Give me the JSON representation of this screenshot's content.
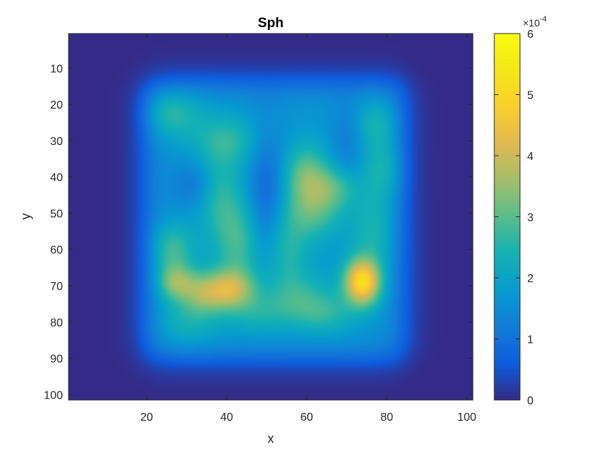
{
  "chart_data": {
    "type": "heatmap",
    "title": "Sph",
    "xlabel": "x",
    "ylabel": "y",
    "xlim": [
      0.5,
      101.5
    ],
    "ylim": [
      0.5,
      101.5
    ],
    "y_direction": "reversed",
    "xticks": [
      20,
      40,
      60,
      80,
      100
    ],
    "yticks": [
      10,
      20,
      30,
      40,
      50,
      60,
      70,
      80,
      90,
      100
    ],
    "colorbar": {
      "min": 0,
      "max": 0.0006,
      "ticks": [
        0,
        1,
        2,
        3,
        4,
        5,
        6
      ],
      "tick_labels": [
        "0",
        "1",
        "2",
        "3",
        "4",
        "5",
        "6"
      ],
      "exponent_label": "×10",
      "exponent_power": "-4",
      "colormap": "parula"
    },
    "value_unit_scale": 0.0001,
    "grid": false,
    "blobs": [
      {
        "x": 74,
        "y": 69,
        "sx": 3.2,
        "sy": 4.5,
        "v": 3.4
      },
      {
        "x": 41,
        "y": 71,
        "sx": 4.5,
        "sy": 4.0,
        "v": 2.0
      },
      {
        "x": 34,
        "y": 72,
        "sx": 4.0,
        "sy": 4.0,
        "v": 1.3
      },
      {
        "x": 27,
        "y": 69,
        "sx": 3.5,
        "sy": 3.5,
        "v": 1.6
      },
      {
        "x": 26,
        "y": 60,
        "sx": 4.0,
        "sy": 5.0,
        "v": 1.2
      },
      {
        "x": 60,
        "y": 40,
        "sx": 4.0,
        "sy": 6.0,
        "v": 1.5
      },
      {
        "x": 62,
        "y": 50,
        "sx": 5.0,
        "sy": 5.0,
        "v": 1.0
      },
      {
        "x": 67,
        "y": 43,
        "sx": 4.0,
        "sy": 4.0,
        "v": 1.0
      },
      {
        "x": 43,
        "y": 58,
        "sx": 4.0,
        "sy": 8.0,
        "v": 1.1
      },
      {
        "x": 38,
        "y": 45,
        "sx": 4.0,
        "sy": 8.0,
        "v": 0.9
      },
      {
        "x": 25,
        "y": 22,
        "sx": 6.0,
        "sy": 5.0,
        "v": 1.1
      },
      {
        "x": 40,
        "y": 30,
        "sx": 6.0,
        "sy": 5.0,
        "v": 0.9
      },
      {
        "x": 80,
        "y": 38,
        "sx": 4.0,
        "sy": 6.0,
        "v": 0.9
      },
      {
        "x": 78,
        "y": 25,
        "sx": 4.0,
        "sy": 5.0,
        "v": 0.8
      },
      {
        "x": 58,
        "y": 74,
        "sx": 6.0,
        "sy": 5.0,
        "v": 0.9
      },
      {
        "x": 65,
        "y": 78,
        "sx": 5.0,
        "sy": 4.0,
        "v": 0.7
      },
      {
        "x": 48,
        "y": 78,
        "sx": 5.0,
        "sy": 4.0,
        "v": 0.6
      },
      {
        "x": 30,
        "y": 80,
        "sx": 6.0,
        "sy": 5.0,
        "v": 0.7
      },
      {
        "x": 55,
        "y": 60,
        "sx": 4.0,
        "sy": 8.0,
        "v": 0.9
      },
      {
        "x": 77,
        "y": 55,
        "sx": 4.0,
        "sy": 8.0,
        "v": 0.8
      }
    ],
    "background_value": 0.3
  }
}
